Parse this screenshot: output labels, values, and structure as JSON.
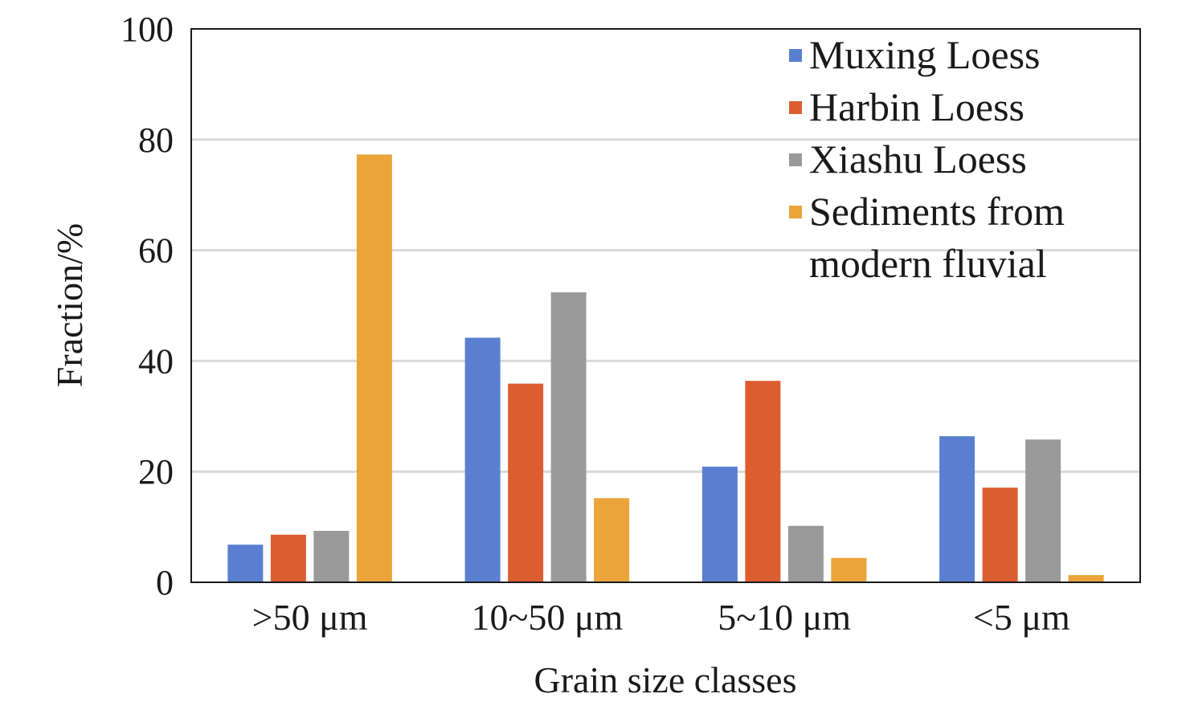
{
  "chart_data": {
    "type": "bar",
    "xlabel": "Grain size classes",
    "ylabel": "Fraction/%",
    "ylim": [
      0,
      100
    ],
    "yticks": [
      0,
      20,
      40,
      60,
      80,
      100
    ],
    "grid": true,
    "legend_position": "top-right",
    "categories": [
      ">50 μm",
      "10~50 μm",
      "5~10 μm",
      "<5 μm"
    ],
    "series": [
      {
        "name": "Muxing Loess",
        "color": "#5b7fd0",
        "values": [
          6.8,
          44.2,
          20.9,
          26.4
        ]
      },
      {
        "name": "Harbin Loess",
        "color": "#dc5e30",
        "values": [
          8.6,
          35.9,
          36.4,
          17.1
        ]
      },
      {
        "name": "Xiashu Loess",
        "color": "#9a9a9a",
        "values": [
          9.3,
          52.4,
          10.2,
          25.8
        ]
      },
      {
        "name": "Sediments from modern fluvial",
        "name_lines": [
          "Sediments from",
          "modern fluvial"
        ],
        "color": "#eaa43a",
        "values": [
          77.3,
          15.2,
          4.4,
          1.3
        ]
      }
    ]
  }
}
